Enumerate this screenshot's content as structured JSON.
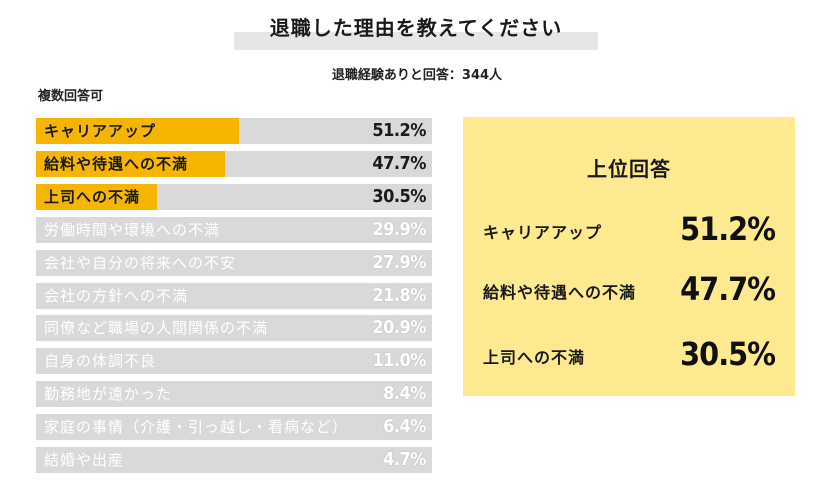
{
  "title": "退職した理由を教えてください",
  "subtitle": "退職経験ありと回答：344人",
  "note": "複数回答可",
  "colors": {
    "highlight": "#f6b500",
    "bar_bg": "#d9d9d9",
    "panel_bg": "#fde98f"
  },
  "chart_data": {
    "type": "bar",
    "orientation": "horizontal",
    "xlim": [
      0,
      100
    ],
    "categories": [
      "キャリアアップ",
      "給料や待遇への不満",
      "上司への不満",
      "労働時間や環境への不満",
      "会社や自分の将来への不安",
      "会社の方針への不満",
      "同僚など職場の人間関係の不満",
      "自身の体調不良",
      "勤務地が遠かった",
      "家庭の事情（介護・引っ越し・看病など）",
      "結婚や出産"
    ],
    "values": [
      51.2,
      47.7,
      30.5,
      29.9,
      27.9,
      21.8,
      20.9,
      11.0,
      8.4,
      6.4,
      4.7
    ],
    "value_labels": [
      "51.2%",
      "47.7%",
      "30.5%",
      "29.9%",
      "27.9%",
      "21.8%",
      "20.9%",
      "11.0%",
      "8.4%",
      "6.4%",
      "4.7%"
    ],
    "highlighted_top": 3
  },
  "top_panel": {
    "title": "上位回答",
    "items": [
      {
        "label": "キャリアアップ",
        "value": "51.2%"
      },
      {
        "label": "給料や待遇への不満",
        "value": "47.7%"
      },
      {
        "label": "上司への不満",
        "value": "30.5%"
      }
    ]
  }
}
